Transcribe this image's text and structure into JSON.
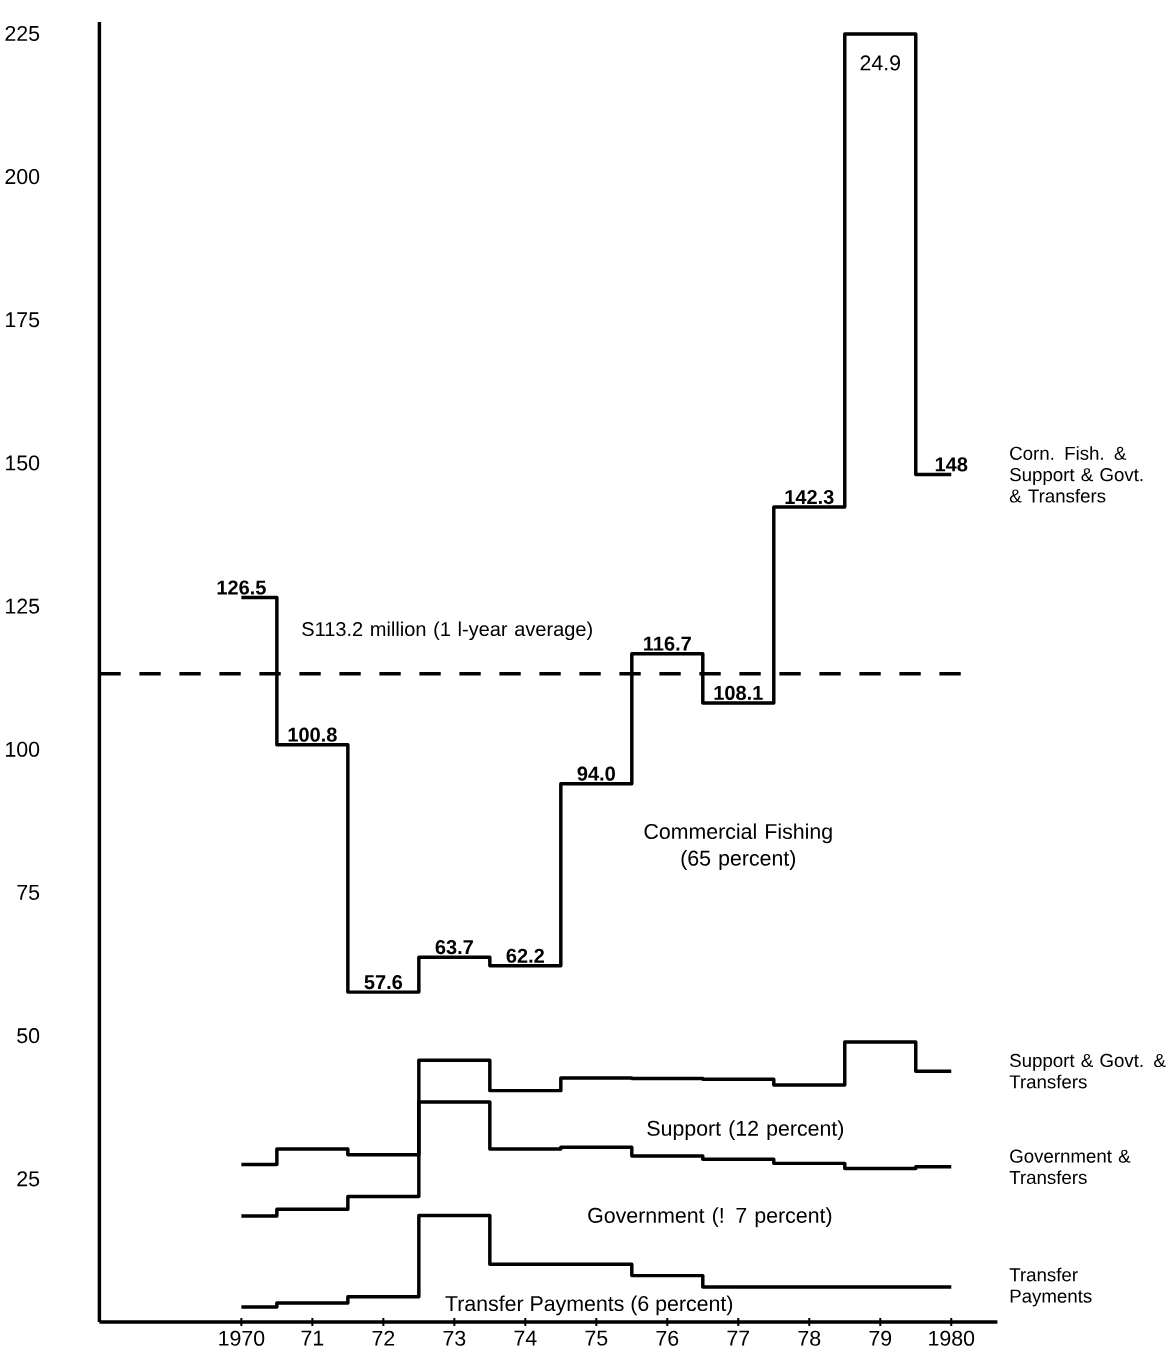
{
  "chart_data": {
    "type": "step",
    "x": [
      1970,
      1971,
      1972,
      1973,
      1974,
      1975,
      1976,
      1977,
      1978,
      1979,
      1980
    ],
    "xlim": [
      1968,
      1980.65
    ],
    "xticks": [
      {
        "value": 1970,
        "label": "1970"
      },
      {
        "value": 1971,
        "label": "71"
      },
      {
        "value": 1972,
        "label": "72"
      },
      {
        "value": 1973,
        "label": "73"
      },
      {
        "value": 1974,
        "label": "74"
      },
      {
        "value": 1975,
        "label": "75"
      },
      {
        "value": 1976,
        "label": "76"
      },
      {
        "value": 1977,
        "label": "77"
      },
      {
        "value": 1978,
        "label": "78"
      },
      {
        "value": 1979,
        "label": "79"
      },
      {
        "value": 1980,
        "label": "1980"
      }
    ],
    "ylim": [
      0,
      227
    ],
    "yticks": [
      25,
      50,
      75,
      100,
      125,
      150,
      175,
      200,
      225
    ],
    "series": [
      {
        "name": "Corn. Fish. & Support & Govt. & Transfers",
        "color": "#000000",
        "values": [
          126.5,
          100.8,
          57.6,
          63.7,
          62.2,
          94.0,
          116.7,
          108.1,
          142.3,
          224.9,
          148
        ],
        "value_labels": [
          "126.5",
          "100.8",
          "57.6",
          "63.7",
          "62.2",
          "94.0",
          "116.7",
          "108.1",
          "142.3",
          null,
          "148"
        ]
      },
      {
        "name": "Support & Govt. & Transfers",
        "color": "#000000",
        "values": [
          27.5,
          30.2,
          29.2,
          45.7,
          40.4,
          42.6,
          42.5,
          42.4,
          41.4,
          48.9,
          43.8
        ]
      },
      {
        "name": "Government & Transfers",
        "color": "#000000",
        "values": [
          18.5,
          19.7,
          21.9,
          38.4,
          30.2,
          30.5,
          29.0,
          28.4,
          27.7,
          26.8,
          27.1
        ]
      },
      {
        "name": "Transfer Payments",
        "color": "#000000",
        "values": [
          2.6,
          3.3,
          4.4,
          18.6,
          10.1,
          10.1,
          8.1,
          6.1,
          6.1,
          6.1,
          6.1
        ]
      }
    ],
    "ref_lines": [
      {
        "axis": "y",
        "value": 113.2,
        "label": "S113.2 million (1 l-year average)",
        "color": "#000000",
        "line_style": "dashed"
      }
    ],
    "annotations": [
      "24.9",
      "Commercial Fishing (65 percent)",
      "Support (12 percent)",
      "Government (! 7 percent)",
      "Transfer Payments (6 percent)"
    ],
    "grid": false,
    "legend": false,
    "marker": "none",
    "line_style": "solid"
  }
}
